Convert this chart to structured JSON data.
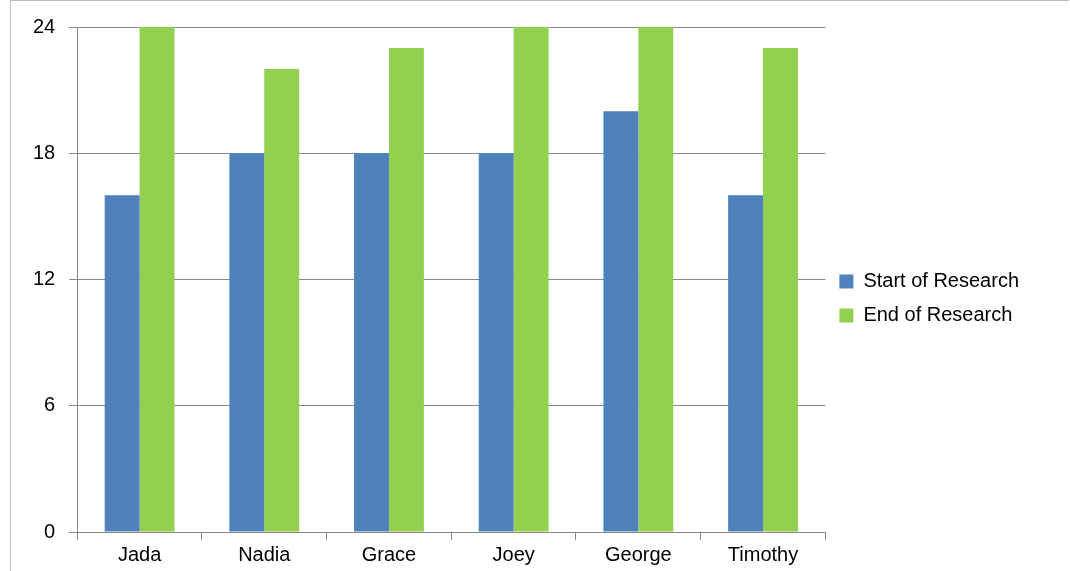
{
  "chart_data": {
    "type": "bar",
    "categories": [
      "Jada",
      "Nadia",
      "Grace",
      "Joey",
      "George",
      "Timothy"
    ],
    "series": [
      {
        "name": "Start of Research",
        "color": "#4f81bd",
        "values": [
          16,
          18,
          18,
          18,
          20,
          16
        ]
      },
      {
        "name": "End of Research",
        "color": "#92d050",
        "values": [
          24,
          22,
          23,
          24,
          24,
          23
        ]
      }
    ],
    "ylim": [
      0,
      24
    ],
    "yticks": [
      0,
      6,
      12,
      18,
      24
    ],
    "grid": "y",
    "legend": "right"
  }
}
